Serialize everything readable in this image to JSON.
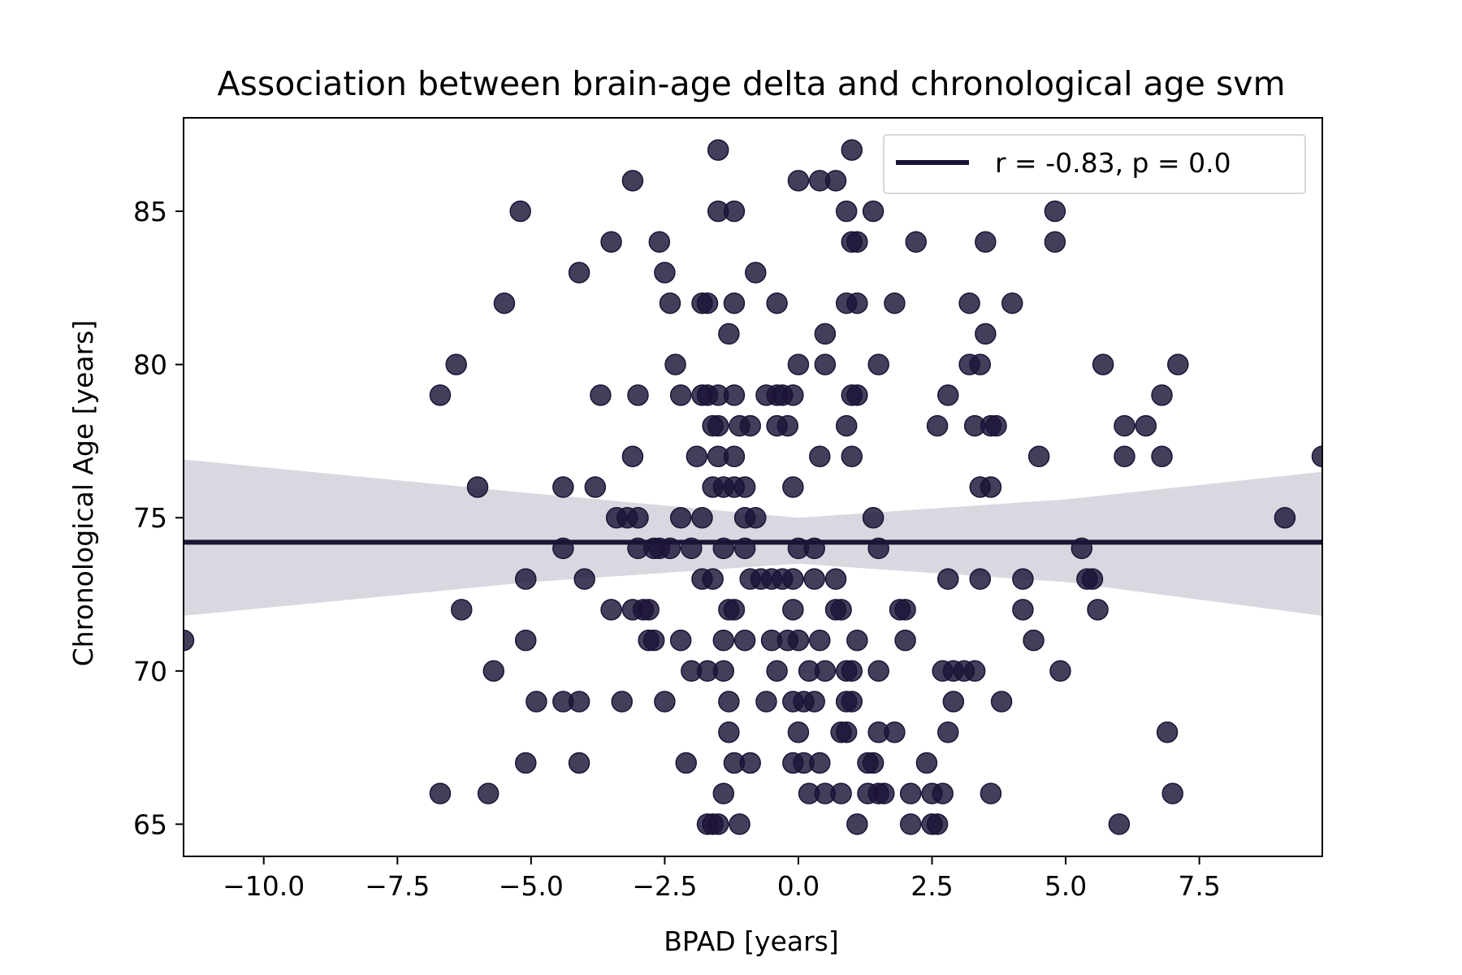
{
  "chart_data": {
    "type": "scatter",
    "title": "Association between brain-age delta and chronological age svm",
    "xlabel": "BPAD [years]",
    "ylabel": "Chronological Age [years]",
    "xlim": [
      -11.5,
      9.8
    ],
    "ylim": [
      63.95,
      88.05
    ],
    "xticks": [
      -10.0,
      -7.5,
      -5.0,
      -2.5,
      0.0,
      2.5,
      5.0,
      7.5
    ],
    "xtick_labels": [
      "−10.0",
      "−7.5",
      "−5.0",
      "−2.5",
      "0.0",
      "2.5",
      "5.0",
      "7.5"
    ],
    "yticks": [
      65,
      70,
      75,
      80,
      85
    ],
    "ytick_labels": [
      "65",
      "70",
      "75",
      "80",
      "85"
    ],
    "grid": false,
    "legend": {
      "position": "top-right",
      "entries": [
        "r = -0.83, p = 0.0"
      ]
    },
    "colors": {
      "points": "#1c1437",
      "line": "#1c1437",
      "band": "#d9d8e0"
    },
    "regression_line": {
      "y": 74.2
    },
    "confidence_band": {
      "x": [
        -11.5,
        -5.0,
        0.0,
        5.0,
        9.8
      ],
      "upper": [
        76.9,
        75.8,
        75.0,
        75.6,
        76.5
      ],
      "lower": [
        71.8,
        72.9,
        73.5,
        72.9,
        71.8
      ]
    },
    "series": [
      {
        "points": [
          [
            -11.5,
            71
          ],
          [
            -6.7,
            79
          ],
          [
            -6.7,
            66
          ],
          [
            -6.4,
            80
          ],
          [
            -6.3,
            72
          ],
          [
            -6.0,
            76
          ],
          [
            -5.8,
            66
          ],
          [
            -5.7,
            70
          ],
          [
            -5.5,
            82
          ],
          [
            -5.2,
            85
          ],
          [
            -5.1,
            73
          ],
          [
            -5.1,
            71
          ],
          [
            -5.1,
            67
          ],
          [
            -4.9,
            69
          ],
          [
            -4.4,
            76
          ],
          [
            -4.4,
            74
          ],
          [
            -4.4,
            69
          ],
          [
            -4.1,
            83
          ],
          [
            -4.1,
            69
          ],
          [
            -4.1,
            67
          ],
          [
            -4.0,
            73
          ],
          [
            -3.8,
            76
          ],
          [
            -3.7,
            79
          ],
          [
            -3.5,
            84
          ],
          [
            -3.5,
            72
          ],
          [
            -3.4,
            75
          ],
          [
            -3.3,
            69
          ],
          [
            -3.2,
            75
          ],
          [
            -3.1,
            86
          ],
          [
            -3.1,
            77
          ],
          [
            -3.1,
            72
          ],
          [
            -3.0,
            79
          ],
          [
            -3.0,
            75
          ],
          [
            -3.0,
            74
          ],
          [
            -2.9,
            72
          ],
          [
            -2.8,
            72
          ],
          [
            -2.8,
            71
          ],
          [
            -2.7,
            71
          ],
          [
            -2.7,
            74
          ],
          [
            -2.6,
            84
          ],
          [
            -2.6,
            74
          ],
          [
            -2.5,
            83
          ],
          [
            -2.5,
            69
          ],
          [
            -2.4,
            82
          ],
          [
            -2.4,
            74
          ],
          [
            -2.3,
            80
          ],
          [
            -2.2,
            79
          ],
          [
            -2.2,
            75
          ],
          [
            -2.2,
            71
          ],
          [
            -2.1,
            67
          ],
          [
            -2.0,
            74
          ],
          [
            -2.0,
            70
          ],
          [
            -1.9,
            77
          ],
          [
            -1.8,
            82
          ],
          [
            -1.8,
            79
          ],
          [
            -1.8,
            75
          ],
          [
            -1.8,
            73
          ],
          [
            -1.7,
            82
          ],
          [
            -1.7,
            79
          ],
          [
            -1.7,
            70
          ],
          [
            -1.7,
            65
          ],
          [
            -1.6,
            78
          ],
          [
            -1.6,
            76
          ],
          [
            -1.6,
            73
          ],
          [
            -1.6,
            65
          ],
          [
            -1.5,
            87
          ],
          [
            -1.5,
            79
          ],
          [
            -1.5,
            77
          ],
          [
            -1.5,
            78
          ],
          [
            -1.5,
            85
          ],
          [
            -1.5,
            65
          ],
          [
            -1.4,
            76
          ],
          [
            -1.4,
            74
          ],
          [
            -1.4,
            71
          ],
          [
            -1.4,
            70
          ],
          [
            -1.4,
            66
          ],
          [
            -1.3,
            81
          ],
          [
            -1.3,
            72
          ],
          [
            -1.3,
            69
          ],
          [
            -1.3,
            68
          ],
          [
            -1.2,
            85
          ],
          [
            -1.2,
            82
          ],
          [
            -1.2,
            79
          ],
          [
            -1.2,
            77
          ],
          [
            -1.2,
            76
          ],
          [
            -1.2,
            72
          ],
          [
            -1.2,
            67
          ],
          [
            -1.1,
            78
          ],
          [
            -1.1,
            65
          ],
          [
            -1.0,
            76
          ],
          [
            -1.0,
            75
          ],
          [
            -1.0,
            74
          ],
          [
            -1.0,
            71
          ],
          [
            -0.9,
            78
          ],
          [
            -0.9,
            67
          ],
          [
            -0.9,
            73
          ],
          [
            -0.8,
            83
          ],
          [
            -0.8,
            75
          ],
          [
            -0.7,
            73
          ],
          [
            -0.6,
            79
          ],
          [
            -0.6,
            69
          ],
          [
            -0.5,
            73
          ],
          [
            -0.5,
            71
          ],
          [
            -0.4,
            82
          ],
          [
            -0.4,
            79
          ],
          [
            -0.4,
            78
          ],
          [
            -0.4,
            70
          ],
          [
            -0.3,
            79
          ],
          [
            -0.3,
            73
          ],
          [
            -0.2,
            78
          ],
          [
            -0.2,
            71
          ],
          [
            -0.1,
            79
          ],
          [
            -0.1,
            76
          ],
          [
            -0.1,
            73
          ],
          [
            -0.1,
            72
          ],
          [
            -0.1,
            69
          ],
          [
            -0.1,
            67
          ],
          [
            0.0,
            86
          ],
          [
            0.0,
            80
          ],
          [
            0.0,
            74
          ],
          [
            0.0,
            71
          ],
          [
            0.0,
            68
          ],
          [
            0.1,
            69
          ],
          [
            0.1,
            67
          ],
          [
            0.2,
            70
          ],
          [
            0.2,
            66
          ],
          [
            0.3,
            74
          ],
          [
            0.3,
            73
          ],
          [
            0.3,
            69
          ],
          [
            0.4,
            86
          ],
          [
            0.4,
            77
          ],
          [
            0.4,
            71
          ],
          [
            0.4,
            67
          ],
          [
            0.5,
            81
          ],
          [
            0.5,
            80
          ],
          [
            0.5,
            70
          ],
          [
            0.5,
            66
          ],
          [
            0.7,
            86
          ],
          [
            0.7,
            73
          ],
          [
            0.7,
            72
          ],
          [
            0.8,
            72
          ],
          [
            0.8,
            68
          ],
          [
            0.8,
            66
          ],
          [
            0.9,
            85
          ],
          [
            0.9,
            82
          ],
          [
            0.9,
            78
          ],
          [
            0.9,
            70
          ],
          [
            0.9,
            69
          ],
          [
            0.9,
            68
          ],
          [
            1.0,
            87
          ],
          [
            1.0,
            84
          ],
          [
            1.0,
            79
          ],
          [
            1.0,
            70
          ],
          [
            1.0,
            69
          ],
          [
            1.0,
            77
          ],
          [
            1.1,
            84
          ],
          [
            1.1,
            82
          ],
          [
            1.1,
            79
          ],
          [
            1.1,
            71
          ],
          [
            1.1,
            65
          ],
          [
            1.3,
            66
          ],
          [
            1.3,
            67
          ],
          [
            1.4,
            85
          ],
          [
            1.4,
            75
          ],
          [
            1.4,
            67
          ],
          [
            1.5,
            80
          ],
          [
            1.5,
            74
          ],
          [
            1.5,
            70
          ],
          [
            1.5,
            68
          ],
          [
            1.5,
            66
          ],
          [
            1.6,
            66
          ],
          [
            1.8,
            82
          ],
          [
            1.8,
            68
          ],
          [
            1.9,
            72
          ],
          [
            2.0,
            72
          ],
          [
            2.0,
            71
          ],
          [
            2.1,
            66
          ],
          [
            2.1,
            65
          ],
          [
            2.2,
            84
          ],
          [
            2.4,
            67
          ],
          [
            2.5,
            66
          ],
          [
            2.5,
            65
          ],
          [
            2.6,
            78
          ],
          [
            2.6,
            65
          ],
          [
            2.7,
            70
          ],
          [
            2.7,
            66
          ],
          [
            2.8,
            79
          ],
          [
            2.8,
            73
          ],
          [
            2.8,
            68
          ],
          [
            2.9,
            70
          ],
          [
            2.9,
            69
          ],
          [
            3.1,
            70
          ],
          [
            3.2,
            82
          ],
          [
            3.2,
            80
          ],
          [
            3.3,
            78
          ],
          [
            3.3,
            70
          ],
          [
            3.4,
            80
          ],
          [
            3.4,
            76
          ],
          [
            3.4,
            73
          ],
          [
            3.5,
            84
          ],
          [
            3.5,
            81
          ],
          [
            3.6,
            78
          ],
          [
            3.6,
            76
          ],
          [
            3.6,
            66
          ],
          [
            3.7,
            78
          ],
          [
            3.8,
            69
          ],
          [
            4.0,
            82
          ],
          [
            4.2,
            73
          ],
          [
            4.2,
            72
          ],
          [
            4.4,
            71
          ],
          [
            4.5,
            77
          ],
          [
            4.8,
            85
          ],
          [
            4.8,
            84
          ],
          [
            4.9,
            70
          ],
          [
            5.3,
            74
          ],
          [
            5.4,
            73
          ],
          [
            5.5,
            73
          ],
          [
            5.6,
            72
          ],
          [
            5.7,
            80
          ],
          [
            6.0,
            65
          ],
          [
            6.1,
            78
          ],
          [
            6.1,
            77
          ],
          [
            6.5,
            78
          ],
          [
            6.8,
            79
          ],
          [
            6.8,
            77
          ],
          [
            6.9,
            68
          ],
          [
            7.0,
            66
          ],
          [
            7.1,
            80
          ],
          [
            9.1,
            75
          ],
          [
            9.8,
            77
          ]
        ]
      }
    ]
  }
}
